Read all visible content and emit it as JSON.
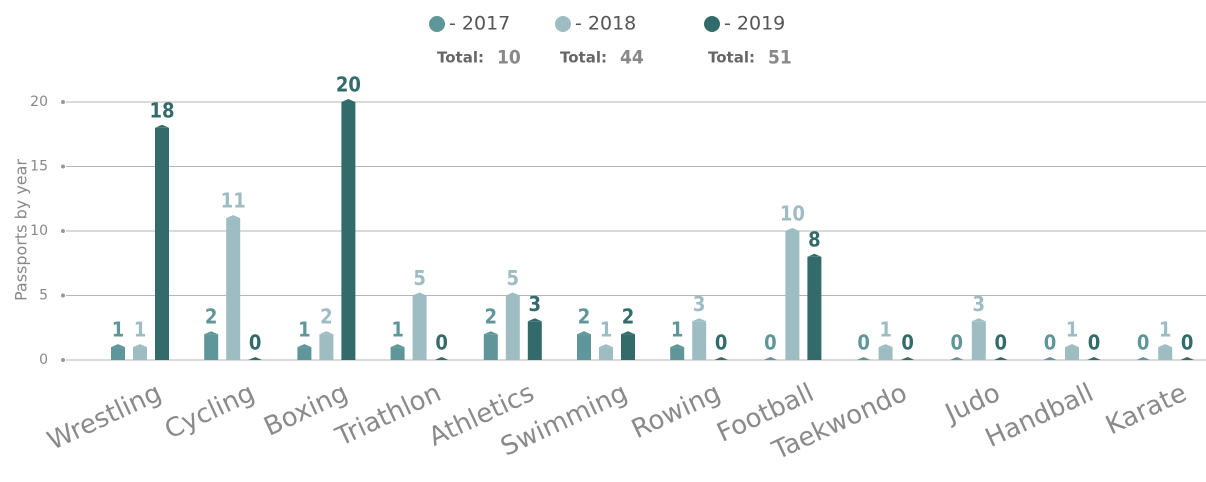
{
  "chart_data": {
    "type": "bar",
    "y_label": "Passports by year",
    "categories": [
      "Wrestling",
      "Cycling",
      "Boxing",
      "Triathlon",
      "Athletics",
      "Swimming",
      "Rowing",
      "Football",
      "Taekwondo",
      "Judo",
      "Handball",
      "Karate"
    ],
    "series": [
      {
        "name": "- 2017",
        "color": "#5e9699",
        "values": [
          1,
          2,
          1,
          1,
          2,
          2,
          1,
          0,
          0,
          0,
          0,
          0
        ]
      },
      {
        "name": "- 2018",
        "color": "#9dbdc2",
        "values": [
          1,
          11,
          2,
          5,
          5,
          1,
          3,
          10,
          1,
          3,
          1,
          1
        ]
      },
      {
        "name": "- 2019",
        "color": "#336b6b",
        "values": [
          18,
          0,
          20,
          0,
          3,
          2,
          0,
          8,
          0,
          0,
          0,
          0
        ]
      }
    ],
    "total_label": "Total:",
    "totals": [
      10,
      44,
      51
    ],
    "ylim": [
      0,
      20
    ],
    "yticks": [
      0,
      5,
      10,
      15,
      20
    ],
    "grid": true
  }
}
